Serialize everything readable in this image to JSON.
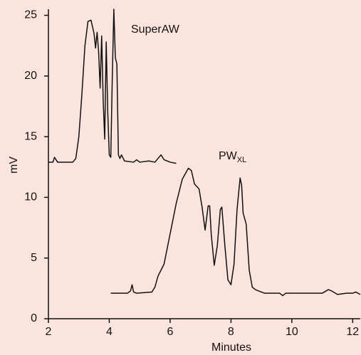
{
  "chart_data": {
    "type": "line",
    "background": "#fbe4dd",
    "x_label": "Minutes",
    "y_label": "mV",
    "xlim": [
      2,
      12.25
    ],
    "ylim": [
      0,
      25.5
    ],
    "xticks": [
      2,
      4,
      6,
      8,
      10,
      12
    ],
    "yticks": [
      0,
      5,
      10,
      15,
      20,
      25
    ],
    "series": [
      {
        "name": "SuperAW",
        "color": "#111111",
        "x": [
          2.0,
          2.15,
          2.2,
          2.3,
          2.8,
          2.9,
          3.0,
          3.1,
          3.2,
          3.3,
          3.4,
          3.5,
          3.55,
          3.6,
          3.65,
          3.7,
          3.75,
          3.8,
          3.85,
          3.9,
          3.95,
          4.0,
          4.05,
          4.1,
          4.15,
          4.2,
          4.25,
          4.3,
          4.35,
          4.4,
          4.5,
          4.8,
          4.9,
          5.0,
          5.3,
          5.5,
          5.6,
          5.7,
          5.8,
          6.0,
          6.2
        ],
        "values": [
          12.9,
          12.9,
          13.3,
          12.9,
          12.9,
          13.2,
          15,
          18.5,
          22.5,
          24.5,
          24.6,
          23.5,
          22.3,
          23.6,
          22,
          19,
          23.3,
          18,
          14.8,
          22.8,
          17,
          13.5,
          13.3,
          20,
          25.5,
          21.5,
          21,
          13.5,
          13.2,
          13.5,
          13,
          12.9,
          13.1,
          12.9,
          13,
          12.9,
          13.2,
          13.5,
          13.1,
          12.9,
          12.8
        ]
      },
      {
        "name": "PW",
        "label_sub": "XL",
        "color": "#111111",
        "x": [
          4.05,
          4.6,
          4.7,
          4.75,
          4.8,
          4.9,
          5.4,
          5.5,
          5.6,
          5.8,
          6.0,
          6.2,
          6.4,
          6.6,
          6.7,
          6.8,
          6.95,
          7.05,
          7.15,
          7.25,
          7.3,
          7.35,
          7.45,
          7.55,
          7.65,
          7.7,
          7.8,
          7.9,
          8.0,
          8.1,
          8.2,
          8.3,
          8.35,
          8.4,
          8.5,
          8.6,
          8.7,
          8.8,
          8.9,
          9.1,
          9.6,
          9.7,
          9.8,
          11.0,
          11.2,
          11.3,
          11.5,
          11.8,
          12.0,
          12.1,
          12.25
        ],
        "values": [
          2.1,
          2.1,
          2.3,
          2.8,
          2.2,
          2.1,
          2.2,
          2.6,
          3.5,
          4.5,
          7,
          9.5,
          11.5,
          12.4,
          12.2,
          11.1,
          10.7,
          9.2,
          7.3,
          9.3,
          9.3,
          7,
          4.4,
          6,
          9,
          9.2,
          6,
          3.2,
          2.8,
          4.5,
          9,
          11.6,
          11.0,
          8.7,
          7.8,
          4,
          2.6,
          2.4,
          2.3,
          2.1,
          2.1,
          1.9,
          2.1,
          2.1,
          2.4,
          2.3,
          2.0,
          2.1,
          2.1,
          2.2,
          2.0
        ]
      }
    ]
  }
}
